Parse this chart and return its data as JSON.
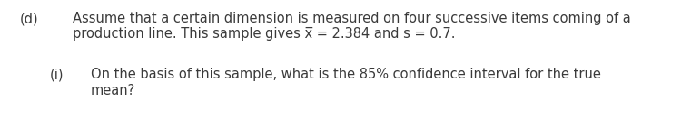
{
  "background_color": "#ffffff",
  "label_d": "(d)",
  "line1": "Assume that a certain dimension is measured on four successive items coming of a",
  "line2": "production line. This sample gives x̅ = 2.384 and s = 0.7.",
  "label_i": "(i)",
  "line3": "On the basis of this sample, what is the 85% confidence interval for the true",
  "line4": "mean?",
  "font_size": 10.5,
  "font_color": "#3a3a3a",
  "font_family": "DejaVu Sans",
  "fig_width": 7.61,
  "fig_height": 1.32,
  "dpi": 100
}
